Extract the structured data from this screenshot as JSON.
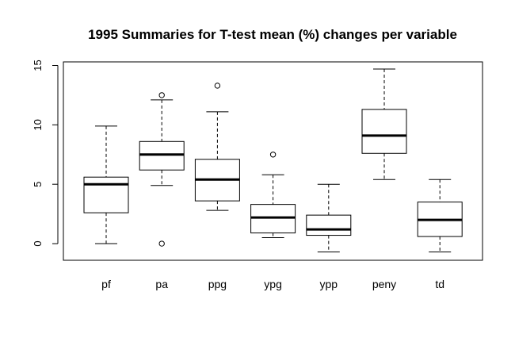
{
  "chart_data": {
    "type": "boxplot",
    "title": "1995  Summaries for T-test mean (%) changes per variable",
    "xlabel": "",
    "ylabel": "",
    "ylim": [
      -1.4,
      15.3
    ],
    "yticks": [
      0,
      5,
      10,
      15
    ],
    "grid": false,
    "legend": "none",
    "categories": [
      "pf",
      "pa",
      "ppg",
      "ypg",
      "ypp",
      "peny",
      "td"
    ],
    "boxes": [
      {
        "name": "pf",
        "whisker_low": 0.0,
        "q1": 2.6,
        "median": 5.0,
        "q3": 5.6,
        "whisker_high": 9.9,
        "outliers": []
      },
      {
        "name": "pa",
        "whisker_low": 4.9,
        "q1": 6.2,
        "median": 7.5,
        "q3": 8.6,
        "whisker_high": 12.1,
        "outliers": [
          0.0,
          12.5
        ]
      },
      {
        "name": "ppg",
        "whisker_low": 2.8,
        "q1": 3.6,
        "median": 5.4,
        "q3": 7.1,
        "whisker_high": 11.1,
        "outliers": [
          13.3
        ]
      },
      {
        "name": "ypg",
        "whisker_low": 0.5,
        "q1": 0.9,
        "median": 2.2,
        "q3": 3.3,
        "whisker_high": 5.8,
        "outliers": [
          7.5
        ]
      },
      {
        "name": "ypp",
        "whisker_low": -0.7,
        "q1": 0.7,
        "median": 1.2,
        "q3": 2.4,
        "whisker_high": 5.0,
        "outliers": []
      },
      {
        "name": "peny",
        "whisker_low": 5.4,
        "q1": 7.6,
        "median": 9.1,
        "q3": 11.3,
        "whisker_high": 14.7,
        "outliers": []
      },
      {
        "name": "td",
        "whisker_low": -0.7,
        "q1": 0.6,
        "median": 2.0,
        "q3": 3.5,
        "whisker_high": 5.4,
        "outliers": []
      }
    ]
  }
}
